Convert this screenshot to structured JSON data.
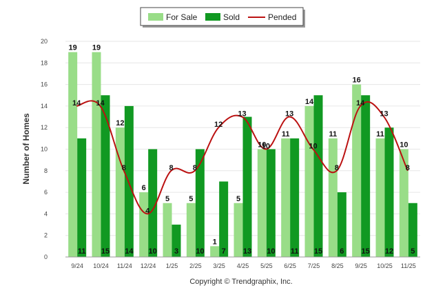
{
  "chart_data": {
    "type": "bar",
    "categories": [
      "9/24",
      "10/24",
      "11/24",
      "12/24",
      "1/25",
      "2/25",
      "3/25",
      "4/25",
      "5/25",
      "6/25",
      "7/25",
      "8/25",
      "9/25",
      "10/25",
      "11/25"
    ],
    "series": [
      {
        "name": "For Sale",
        "type": "bar",
        "color": "#99dd88",
        "values": [
          19,
          19,
          12,
          6,
          5,
          5,
          1,
          5,
          10,
          11,
          14,
          11,
          16,
          11,
          10
        ]
      },
      {
        "name": "Sold",
        "type": "bar",
        "color": "#119922",
        "values": [
          11,
          15,
          14,
          10,
          3,
          10,
          7,
          13,
          10,
          11,
          15,
          6,
          15,
          12,
          5
        ]
      },
      {
        "name": "Pended",
        "type": "line",
        "color": "#bb1111",
        "values": [
          14,
          14,
          8,
          4,
          8,
          8,
          12,
          13,
          10,
          13,
          10,
          8,
          14,
          13,
          8
        ]
      }
    ],
    "title": "",
    "xlabel": "",
    "ylabel": "Number of Homes",
    "ylim": [
      0,
      20
    ],
    "yticks": [
      0,
      2,
      4,
      6,
      8,
      10,
      12,
      14,
      16,
      18,
      20
    ],
    "legend_position": "top-center",
    "copyright": "Copyright © Trendgraphix, Inc."
  }
}
